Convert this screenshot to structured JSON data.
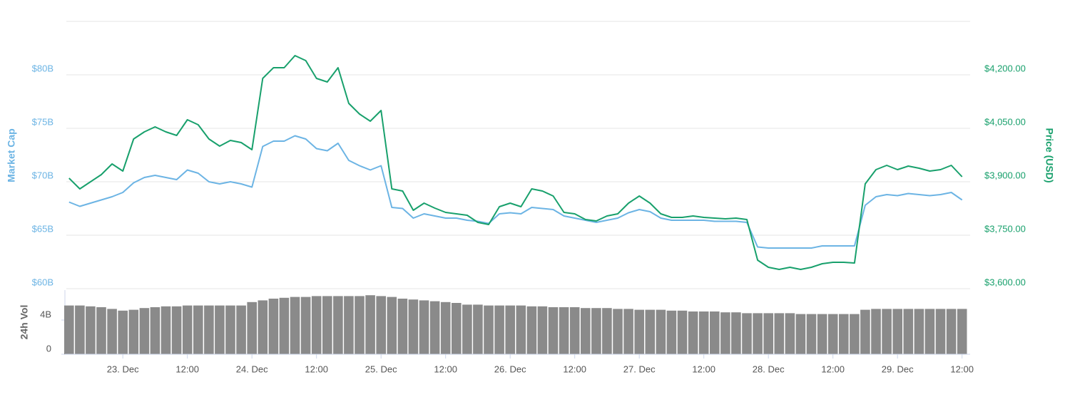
{
  "chart_data": [
    {
      "type": "line",
      "ylabel": "Market Cap",
      "y2label": "Price (USD)",
      "x": [
        "22. Dec 14:00",
        "22. Dec 16:00",
        "22. Dec 18:00",
        "22. Dec 20:00",
        "22. Dec 22:00",
        "23. Dec 00:00",
        "23. Dec 02:00",
        "23. Dec 04:00",
        "23. Dec 06:00",
        "23. Dec 08:00",
        "23. Dec 10:00",
        "23. Dec 12:00",
        "23. Dec 14:00",
        "23. Dec 16:00",
        "23. Dec 18:00",
        "23. Dec 20:00",
        "23. Dec 22:00",
        "24. Dec 00:00",
        "24. Dec 02:00",
        "24. Dec 04:00",
        "24. Dec 06:00",
        "24. Dec 08:00",
        "24. Dec 10:00",
        "24. Dec 12:00",
        "24. Dec 14:00",
        "24. Dec 16:00",
        "24. Dec 18:00",
        "24. Dec 20:00",
        "24. Dec 22:00",
        "25. Dec 00:00",
        "25. Dec 02:00",
        "25. Dec 04:00",
        "25. Dec 06:00",
        "25. Dec 08:00",
        "25. Dec 10:00",
        "25. Dec 12:00",
        "25. Dec 14:00",
        "25. Dec 16:00",
        "25. Dec 18:00",
        "25. Dec 20:00",
        "25. Dec 22:00",
        "26. Dec 00:00",
        "26. Dec 02:00",
        "26. Dec 04:00",
        "26. Dec 06:00",
        "26. Dec 08:00",
        "26. Dec 10:00",
        "26. Dec 12:00",
        "26. Dec 14:00",
        "26. Dec 16:00",
        "26. Dec 18:00",
        "26. Dec 20:00",
        "26. Dec 22:00",
        "27. Dec 00:00",
        "27. Dec 02:00",
        "27. Dec 04:00",
        "27. Dec 06:00",
        "27. Dec 08:00",
        "27. Dec 10:00",
        "27. Dec 12:00",
        "27. Dec 14:00",
        "27. Dec 16:00",
        "27. Dec 18:00",
        "27. Dec 20:00",
        "27. Dec 22:00",
        "28. Dec 00:00",
        "28. Dec 02:00",
        "28. Dec 04:00",
        "28. Dec 06:00",
        "28. Dec 08:00",
        "28. Dec 10:00",
        "28. Dec 12:00",
        "28. Dec 14:00",
        "28. Dec 16:00",
        "28. Dec 18:00",
        "28. Dec 20:00",
        "28. Dec 22:00",
        "29. Dec 00:00",
        "29. Dec 02:00",
        "29. Dec 04:00",
        "29. Dec 06:00",
        "29. Dec 08:00",
        "29. Dec 10:00",
        "29. Dec 12:00"
      ],
      "xlim": [
        "22. Dec 13:30",
        "29. Dec 13:30"
      ],
      "series": [
        {
          "color": "#6cb4e4",
          "axis": "y",
          "values": [
            68.1,
            67.7,
            68.0,
            68.3,
            68.6,
            69.0,
            69.9,
            70.4,
            70.6,
            70.4,
            70.2,
            71.1,
            70.8,
            70.0,
            69.8,
            70.0,
            69.8,
            69.5,
            73.3,
            73.8,
            73.8,
            74.3,
            74.0,
            73.1,
            72.9,
            73.6,
            72.0,
            71.5,
            71.1,
            71.5,
            67.6,
            67.5,
            66.6,
            67.0,
            66.8,
            66.6,
            66.6,
            66.4,
            66.3,
            66.1,
            67.0,
            67.1,
            67.0,
            67.6,
            67.5,
            67.4,
            66.8,
            66.6,
            66.4,
            66.2,
            66.4,
            66.6,
            67.1,
            67.4,
            67.2,
            66.6,
            66.4,
            66.4,
            66.4,
            66.4,
            66.3,
            66.3,
            66.3,
            66.2,
            63.9,
            63.8,
            63.8,
            63.8,
            63.8,
            63.8,
            64.0,
            64.0,
            64.0,
            64.0,
            67.8,
            68.6,
            68.8,
            68.7,
            68.9,
            68.8,
            68.7,
            68.8,
            69.0,
            68.3
          ]
        },
        {
          "color": "#18a06c",
          "axis": "y2",
          "values": [
            3910,
            3880,
            3900,
            3920,
            3950,
            3930,
            4020,
            4040,
            4054,
            4040,
            4030,
            4074,
            4060,
            4020,
            4000,
            4016,
            4010,
            3990,
            4190,
            4220,
            4220,
            4254,
            4240,
            4190,
            4180,
            4220,
            4120,
            4090,
            4070,
            4100,
            3880,
            3874,
            3820,
            3840,
            3826,
            3814,
            3810,
            3806,
            3786,
            3780,
            3830,
            3840,
            3830,
            3880,
            3874,
            3860,
            3814,
            3810,
            3794,
            3790,
            3804,
            3810,
            3840,
            3860,
            3840,
            3810,
            3800,
            3800,
            3804,
            3800,
            3798,
            3796,
            3798,
            3794,
            3680,
            3660,
            3654,
            3660,
            3654,
            3660,
            3670,
            3674,
            3674,
            3672,
            3894,
            3934,
            3946,
            3934,
            3944,
            3938,
            3930,
            3934,
            3946,
            3914
          ]
        }
      ],
      "ylim": [
        60,
        85
      ],
      "yticks": [
        {
          "value": 60,
          "label": "$60B"
        },
        {
          "value": 65,
          "label": "$65B"
        },
        {
          "value": 70,
          "label": "$70B"
        },
        {
          "value": 75,
          "label": "$75B"
        },
        {
          "value": 80,
          "label": "$80B"
        }
      ],
      "y2lim": [
        3600,
        4350
      ],
      "y2ticks": [
        {
          "value": 3600,
          "label": "$3,600.00"
        },
        {
          "value": 3750,
          "label": "$3,750.00"
        },
        {
          "value": 3900,
          "label": "$3,900.00"
        },
        {
          "value": 4050,
          "label": "$4,050.00"
        },
        {
          "value": 4200,
          "label": "$4,200.00"
        }
      ],
      "grid": true
    },
    {
      "type": "bar",
      "ylabel": "24h Vol",
      "color": "#8a8a8a",
      "values": [
        5.7,
        5.7,
        5.6,
        5.5,
        5.3,
        5.1,
        5.2,
        5.4,
        5.5,
        5.6,
        5.6,
        5.7,
        5.7,
        5.7,
        5.7,
        5.7,
        5.7,
        6.1,
        6.3,
        6.5,
        6.6,
        6.7,
        6.7,
        6.8,
        6.8,
        6.8,
        6.8,
        6.8,
        6.9,
        6.8,
        6.7,
        6.5,
        6.4,
        6.3,
        6.2,
        6.1,
        6.0,
        5.8,
        5.8,
        5.7,
        5.7,
        5.7,
        5.7,
        5.6,
        5.6,
        5.5,
        5.5,
        5.5,
        5.4,
        5.4,
        5.4,
        5.3,
        5.3,
        5.2,
        5.2,
        5.2,
        5.1,
        5.1,
        5.0,
        5.0,
        5.0,
        4.9,
        4.9,
        4.8,
        4.8,
        4.8,
        4.8,
        4.8,
        4.7,
        4.7,
        4.7,
        4.7,
        4.7,
        4.7,
        5.2,
        5.3,
        5.3,
        5.3,
        5.3,
        5.3,
        5.3,
        5.3,
        5.3,
        5.3
      ],
      "ylim": [
        0,
        7.5
      ],
      "yticks": [
        0,
        {
          "value": 4,
          "label": "4B"
        }
      ],
      "xticks": [
        {
          "value": "23. Dec 00:00",
          "label": "23. Dec"
        },
        {
          "value": "23. Dec 12:00",
          "label": "12:00"
        },
        {
          "value": "24. Dec 00:00",
          "label": "24. Dec"
        },
        {
          "value": "24. Dec 12:00",
          "label": "12:00"
        },
        {
          "value": "25. Dec 00:00",
          "label": "25. Dec"
        },
        {
          "value": "25. Dec 12:00",
          "label": "12:00"
        },
        {
          "value": "26. Dec 00:00",
          "label": "26. Dec"
        },
        {
          "value": "26. Dec 12:00",
          "label": "12:00"
        },
        {
          "value": "27. Dec 00:00",
          "label": "27. Dec"
        },
        {
          "value": "27. Dec 12:00",
          "label": "12:00"
        },
        {
          "value": "28. Dec 00:00",
          "label": "28. Dec"
        },
        {
          "value": "28. Dec 12:00",
          "label": "12:00"
        },
        {
          "value": "29. Dec 00:00",
          "label": "29. Dec"
        },
        {
          "value": "29. Dec 12:00",
          "label": "12:00"
        }
      ]
    }
  ]
}
